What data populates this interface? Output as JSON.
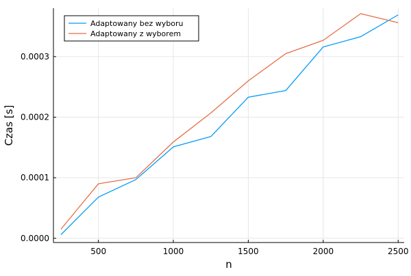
{
  "chart_data": {
    "type": "line",
    "xlabel": "n",
    "ylabel": "Czas [s]",
    "xlim": [
      200,
      2540
    ],
    "ylim": [
      -7e-06,
      0.00038
    ],
    "xticks": [
      500,
      1000,
      1500,
      2000,
      2500
    ],
    "xtick_labels": [
      "500",
      "1000",
      "1500",
      "2000",
      "2500"
    ],
    "yticks": [
      0.0,
      0.0001,
      0.0002,
      0.0003
    ],
    "ytick_labels": [
      "0.0000",
      "0.0001",
      "0.0002",
      "0.0003"
    ],
    "grid": true,
    "legend_position": "top-left",
    "x": [
      250,
      500,
      750,
      1000,
      1250,
      1500,
      1750,
      2000,
      2250,
      2500
    ],
    "series": [
      {
        "name": "Adaptowany bez wyboru",
        "color": "#009AFA",
        "values": [
          6e-06,
          6.8e-05,
          9.7e-05,
          0.000151,
          0.000168,
          0.000233,
          0.000244,
          0.000316,
          0.000333,
          0.000369
        ]
      },
      {
        "name": "Adaptowany z wyborem",
        "color": "#E36F47",
        "values": [
          1.5e-05,
          9e-05,
          0.0001,
          0.000159,
          0.000207,
          0.00026,
          0.000305,
          0.000327,
          0.000371,
          0.000356
        ]
      }
    ]
  }
}
